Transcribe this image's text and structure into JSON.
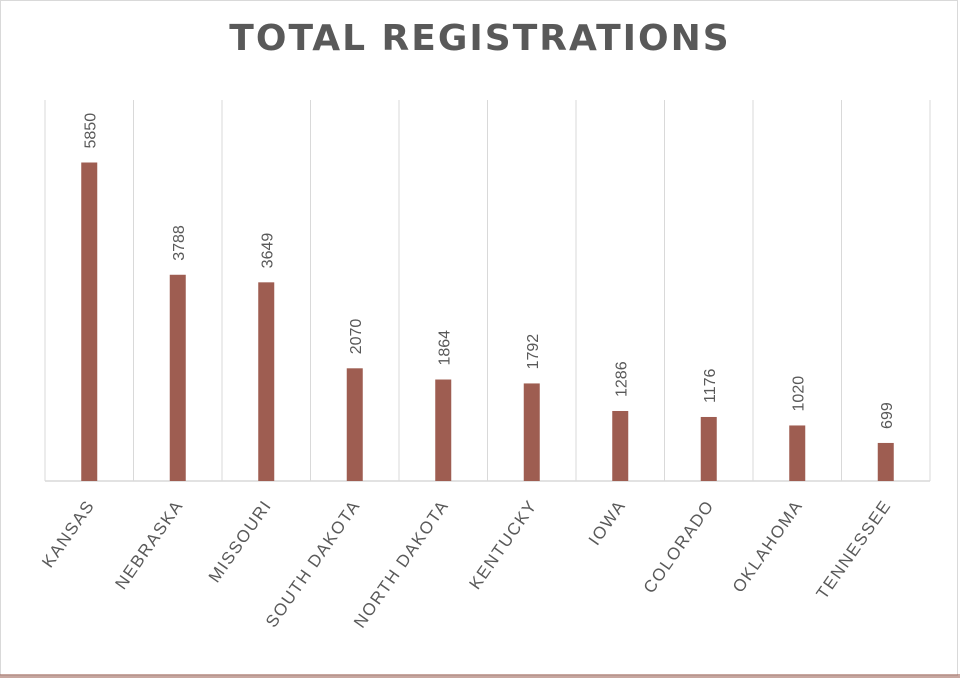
{
  "chart_data": {
    "type": "bar",
    "title": "TOTAL REGISTRATIONS",
    "categories": [
      "KANSAS",
      "NEBRASKA",
      "MISSOURI",
      "SOUTH DAKOTA",
      "NORTH DAKOTA",
      "KENTUCKY",
      "IOWA",
      "COLORADO",
      "OKLAHOMA",
      "TENNESSEE"
    ],
    "series": [
      {
        "values": [
          5850,
          3788,
          3649,
          2070,
          1864,
          1792,
          1286,
          1176,
          1020,
          699
        ]
      }
    ],
    "ylim": [
      0,
      7000
    ],
    "grid": "vertical category separators",
    "legend": "none",
    "data_labels": "rotated above bars",
    "bar_color": "#9e5d51",
    "gridline_color": "#d9d9d9",
    "text_color": "#595959"
  }
}
